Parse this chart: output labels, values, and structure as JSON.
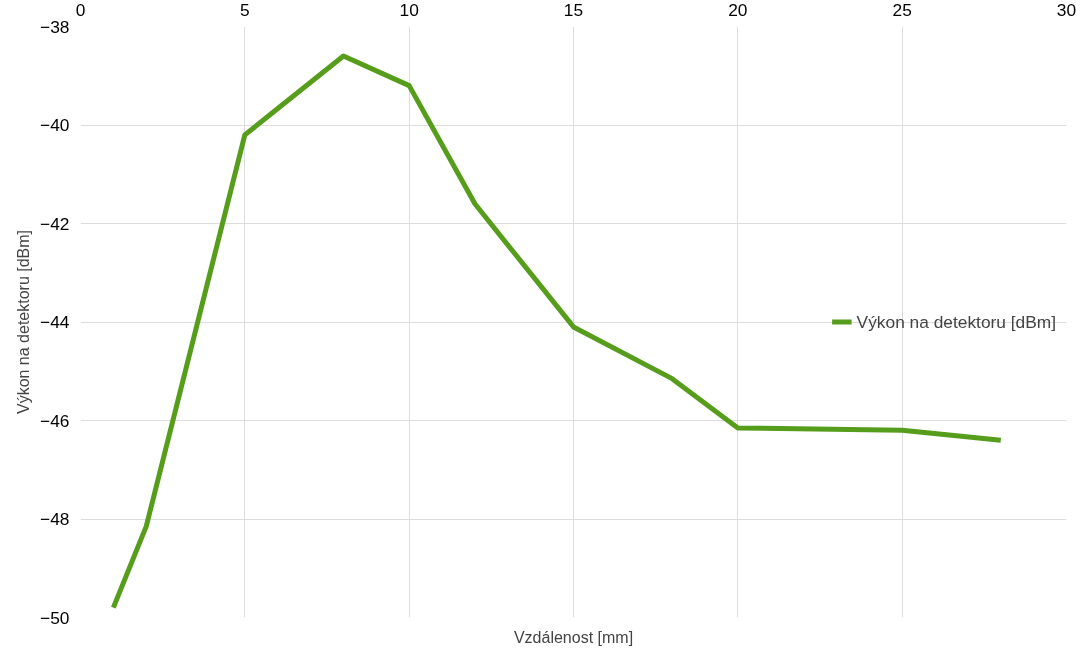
{
  "chart_data": {
    "type": "line",
    "xlabel": "Vzdálenost [mm]",
    "ylabel": "Výkon na detektoru [dBm]",
    "x": [
      1,
      2,
      5,
      8,
      10,
      12,
      15,
      18,
      20,
      25,
      28
    ],
    "series": [
      {
        "name": "Výkon na detektoru [dBm]",
        "color": "#579d1c",
        "values": [
          -49.8,
          -48.15,
          -40.2,
          -38.6,
          -39.2,
          -41.6,
          -44.1,
          -45.15,
          -46.15,
          -46.2,
          -46.4
        ]
      }
    ],
    "xlim": [
      0,
      30
    ],
    "xticks": [
      0,
      5,
      10,
      15,
      20,
      25,
      30
    ],
    "ylim": [
      -50,
      -38
    ],
    "yticks": [
      -50,
      -48,
      -46,
      -44,
      -42,
      -40,
      -38
    ],
    "grid": true,
    "legend": "right",
    "marker": "none",
    "line_style": "solid"
  }
}
